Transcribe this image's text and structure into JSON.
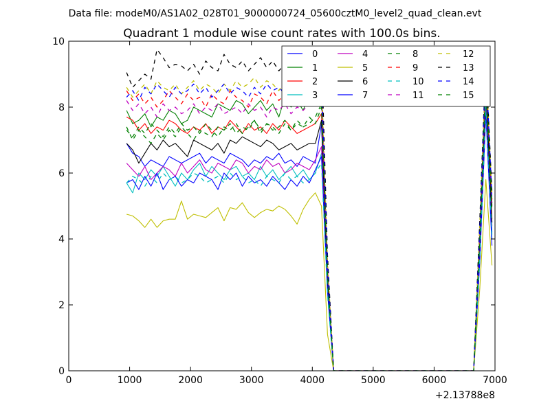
{
  "suptitle": "Data file: modeM0/AS1A02_028T01_9000000724_05600cztM0_level2_quad_clean.evt",
  "chart_data": {
    "type": "line",
    "title": "Quadrant 1 module wise count rates with 100.0s bins.",
    "xlabel": "",
    "ylabel": "",
    "xlim": [
      0,
      7000
    ],
    "ylim": [
      0,
      10
    ],
    "xticks": [
      0,
      1000,
      2000,
      3000,
      4000,
      5000,
      6000,
      7000
    ],
    "xtick_labels": [
      "0",
      "1000",
      "2000",
      "3000",
      "4000",
      "5000",
      "6000",
      "7000"
    ],
    "yticks": [
      0,
      2,
      4,
      6,
      8,
      10
    ],
    "ytick_labels": [
      "0",
      "2",
      "4",
      "6",
      "8",
      "10"
    ],
    "x_offset_label": "+2.13788e8",
    "grid": false,
    "legend_position": "top-right",
    "legend_columns": 4,
    "x": [
      950,
      1050,
      1150,
      1250,
      1350,
      1450,
      1550,
      1650,
      1750,
      1850,
      1950,
      2050,
      2150,
      2250,
      2350,
      2450,
      2550,
      2650,
      2750,
      2850,
      2950,
      3050,
      3150,
      3250,
      3350,
      3450,
      3550,
      3650,
      3750,
      3850,
      3950,
      4050,
      4150,
      4250,
      4350,
      4450,
      4550,
      4650,
      4750,
      4850,
      4950,
      5050,
      5150,
      5250,
      5350,
      5450,
      5550,
      5650,
      5750,
      5850,
      5950,
      6050,
      6150,
      6250,
      6350,
      6450,
      6550,
      6650,
      6750,
      6850,
      6950
    ],
    "series": [
      {
        "name": "0",
        "color": "#0000ff",
        "dash": "solid",
        "values": [
          6.9,
          6.6,
          6.5,
          6.2,
          6.4,
          6.3,
          6.2,
          6.5,
          6.4,
          6.3,
          6.4,
          6.5,
          6.6,
          6.3,
          6.5,
          6.4,
          6.3,
          6.6,
          6.5,
          6.4,
          6.2,
          6.4,
          6.3,
          6.5,
          6.4,
          6.6,
          6.3,
          6.4,
          6.2,
          6.5,
          6.4,
          6.3,
          7.5,
          2.5,
          0,
          0,
          0,
          0,
          0,
          0,
          0,
          0,
          0,
          0,
          0,
          0,
          0,
          0,
          0,
          0,
          0,
          0,
          0,
          0,
          0,
          0,
          0,
          0,
          3.5,
          8.5,
          4.2
        ]
      },
      {
        "name": "1",
        "color": "#008000",
        "dash": "solid",
        "values": [
          7.9,
          7.5,
          7.6,
          7.8,
          7.4,
          7.7,
          7.6,
          7.9,
          7.8,
          7.5,
          7.6,
          8.0,
          7.9,
          7.8,
          7.7,
          8.1,
          8.0,
          7.9,
          8.2,
          8.1,
          7.8,
          8.0,
          8.2,
          7.9,
          8.1,
          7.7,
          8.3,
          8.0,
          8.2,
          7.9,
          8.4,
          8.1,
          8.5,
          3.0,
          0,
          0,
          0,
          0,
          0,
          0,
          0,
          0,
          0,
          0,
          0,
          0,
          0,
          0,
          0,
          0,
          0,
          0,
          0,
          0,
          0,
          0,
          0,
          0,
          4.0,
          9.0,
          5.0
        ]
      },
      {
        "name": "2",
        "color": "#ff0000",
        "dash": "solid",
        "values": [
          7.7,
          7.6,
          7.3,
          7.5,
          7.2,
          7.4,
          7.3,
          7.6,
          7.5,
          7.3,
          7.2,
          7.4,
          7.3,
          7.5,
          7.2,
          7.4,
          7.3,
          7.6,
          7.4,
          7.2,
          7.5,
          7.3,
          7.4,
          7.2,
          7.5,
          7.3,
          7.6,
          7.4,
          7.2,
          7.3,
          7.4,
          7.5,
          7.8,
          2.8,
          0,
          0,
          0,
          0,
          0,
          0,
          0,
          0,
          0,
          0,
          0,
          0,
          0,
          0,
          0,
          0,
          0,
          0,
          0,
          0,
          0,
          0,
          0,
          0,
          3.8,
          8.8,
          4.6
        ]
      },
      {
        "name": "3",
        "color": "#00bfbf",
        "dash": "solid",
        "values": [
          5.7,
          5.4,
          6.0,
          5.8,
          6.1,
          5.9,
          6.2,
          5.9,
          5.6,
          6.0,
          5.8,
          6.1,
          6.3,
          5.9,
          6.2,
          6.0,
          5.8,
          6.1,
          6.2,
          5.9,
          6.0,
          5.8,
          6.2,
          5.9,
          6.1,
          5.8,
          6.0,
          6.2,
          5.9,
          6.1,
          5.8,
          6.0,
          6.6,
          2.4,
          0,
          0,
          0,
          0,
          0,
          0,
          0,
          0,
          0,
          0,
          0,
          0,
          0,
          0,
          0,
          0,
          0,
          0,
          0,
          0,
          0,
          0,
          0,
          0,
          3.4,
          8.2,
          4.0
        ]
      },
      {
        "name": "4",
        "color": "#bf00bf",
        "dash": "solid",
        "values": [
          6.3,
          6.1,
          5.9,
          6.2,
          5.8,
          6.0,
          6.2,
          6.1,
          5.9,
          6.3,
          6.0,
          6.2,
          6.4,
          6.1,
          6.0,
          6.3,
          6.2,
          6.1,
          6.4,
          6.3,
          6.0,
          6.2,
          6.1,
          6.4,
          6.2,
          6.3,
          6.0,
          6.1,
          6.3,
          6.2,
          6.1,
          6.4,
          6.8,
          2.6,
          0,
          0,
          0,
          0,
          0,
          0,
          0,
          0,
          0,
          0,
          0,
          0,
          0,
          0,
          0,
          0,
          0,
          0,
          0,
          0,
          0,
          0,
          0,
          0,
          3.6,
          8.4,
          4.4
        ]
      },
      {
        "name": "5",
        "color": "#bfbf00",
        "dash": "solid",
        "values": [
          4.75,
          4.7,
          4.55,
          4.35,
          4.6,
          4.35,
          4.55,
          4.6,
          4.6,
          5.15,
          4.6,
          4.75,
          4.7,
          4.65,
          4.8,
          4.95,
          4.55,
          4.95,
          4.9,
          5.1,
          4.8,
          4.65,
          4.8,
          4.9,
          4.85,
          5.0,
          4.9,
          4.7,
          4.45,
          4.9,
          5.2,
          5.4,
          5.0,
          1.1,
          0,
          0,
          0,
          0,
          0,
          0,
          0,
          0,
          0,
          0,
          0,
          0,
          0,
          0,
          0,
          0,
          0,
          0,
          0,
          0,
          0,
          0,
          0,
          0,
          2.5,
          5.8,
          3.2
        ]
      },
      {
        "name": "6",
        "color": "#000000",
        "dash": "solid",
        "values": [
          6.9,
          6.7,
          6.3,
          6.6,
          6.9,
          6.7,
          7.0,
          6.8,
          6.9,
          6.7,
          6.5,
          7.0,
          6.9,
          6.8,
          6.7,
          6.9,
          6.6,
          7.0,
          6.9,
          7.1,
          7.0,
          6.9,
          6.8,
          7.0,
          6.9,
          6.7,
          6.8,
          6.9,
          6.7,
          6.8,
          6.9,
          6.9,
          7.6,
          2.7,
          0,
          0,
          0,
          0,
          0,
          0,
          0,
          0,
          0,
          0,
          0,
          0,
          0,
          0,
          0,
          0,
          0,
          0,
          0,
          0,
          0,
          0,
          0,
          0,
          3.9,
          8.6,
          4.5
        ]
      },
      {
        "name": "7",
        "color": "#0000ff",
        "dash": "solid",
        "values": [
          5.7,
          5.8,
          5.5,
          5.9,
          5.6,
          6.0,
          5.5,
          5.8,
          5.9,
          5.6,
          5.8,
          5.7,
          6.0,
          5.9,
          5.8,
          5.5,
          6.0,
          5.8,
          6.0,
          5.6,
          5.9,
          5.7,
          5.8,
          5.6,
          5.9,
          5.7,
          5.5,
          5.8,
          5.6,
          5.9,
          5.7,
          6.1,
          6.5,
          2.4,
          0,
          0,
          0,
          0,
          0,
          0,
          0,
          0,
          0,
          0,
          0,
          0,
          0,
          0,
          0,
          0,
          0,
          0,
          0,
          0,
          0,
          0,
          0,
          0,
          3.3,
          7.8,
          3.8
        ]
      },
      {
        "name": "8",
        "color": "#008000",
        "dash": "dashed",
        "values": [
          7.4,
          7.0,
          7.3,
          7.1,
          6.9,
          7.2,
          7.0,
          7.3,
          7.1,
          7.4,
          7.2,
          7.0,
          7.3,
          7.2,
          7.1,
          7.4,
          7.3,
          7.5,
          7.2,
          7.4,
          7.3,
          7.6,
          7.2,
          7.5,
          7.3,
          7.4,
          7.6,
          7.3,
          7.5,
          7.4,
          7.7,
          7.5,
          8.0,
          2.9,
          0,
          0,
          0,
          0,
          0,
          0,
          0,
          0,
          0,
          0,
          0,
          0,
          0,
          0,
          0,
          0,
          0,
          0,
          0,
          0,
          0,
          0,
          0,
          0,
          4.1,
          8.9,
          5.1
        ]
      },
      {
        "name": "9",
        "color": "#ff0000",
        "dash": "dashed",
        "values": [
          8.5,
          8.2,
          8.4,
          8.1,
          8.3,
          8.0,
          8.2,
          8.5,
          8.3,
          8.1,
          8.4,
          8.2,
          8.3,
          8.0,
          8.4,
          8.2,
          8.1,
          8.5,
          8.3,
          8.2,
          8.0,
          8.4,
          8.3,
          8.1,
          8.5,
          8.2,
          8.4,
          8.1,
          8.3,
          8.5,
          8.2,
          8.6,
          8.8,
          3.2,
          0,
          0,
          0,
          0,
          0,
          0,
          0,
          0,
          0,
          0,
          0,
          0,
          0,
          0,
          0,
          0,
          0,
          0,
          0,
          0,
          0,
          0,
          0,
          0,
          4.4,
          9.2,
          5.2
        ]
      },
      {
        "name": "10",
        "color": "#00bfbf",
        "dash": "dashed",
        "values": [
          5.7,
          5.9,
          5.8,
          5.6,
          5.9,
          5.7,
          6.0,
          5.8,
          5.9,
          5.7,
          5.8,
          6.0,
          5.9,
          5.7,
          5.8,
          5.9,
          5.7,
          6.0,
          5.8,
          5.9,
          5.7,
          5.8,
          5.6,
          5.9,
          5.8,
          5.7,
          6.0,
          5.8,
          5.9,
          5.7,
          5.8,
          6.0,
          6.3,
          2.3,
          0,
          0,
          0,
          0,
          0,
          0,
          0,
          0,
          0,
          0,
          0,
          0,
          0,
          0,
          0,
          0,
          0,
          0,
          0,
          0,
          0,
          0,
          0,
          0,
          3.4,
          8.0,
          4.1
        ]
      },
      {
        "name": "11",
        "color": "#bf00bf",
        "dash": "dashed",
        "values": [
          8.2,
          7.9,
          8.1,
          7.8,
          8.0,
          7.7,
          8.1,
          7.9,
          8.0,
          7.8,
          7.9,
          8.1,
          7.8,
          8.0,
          7.9,
          8.1,
          7.8,
          7.9,
          8.0,
          7.8,
          8.1,
          7.9,
          8.0,
          7.7,
          8.0,
          7.9,
          8.1,
          7.8,
          8.0,
          7.9,
          8.1,
          8.2,
          8.4,
          3.1,
          0,
          0,
          0,
          0,
          0,
          0,
          0,
          0,
          0,
          0,
          0,
          0,
          0,
          0,
          0,
          0,
          0,
          0,
          0,
          0,
          0,
          0,
          0,
          0,
          4.2,
          9.1,
          5.0
        ]
      },
      {
        "name": "12",
        "color": "#bfbf00",
        "dash": "dashed",
        "values": [
          8.6,
          8.3,
          8.5,
          8.7,
          8.4,
          8.8,
          8.6,
          8.5,
          8.7,
          8.4,
          8.6,
          8.8,
          8.5,
          8.7,
          8.6,
          8.4,
          8.7,
          8.5,
          8.8,
          8.6,
          8.7,
          8.9,
          8.6,
          8.8,
          8.7,
          8.5,
          8.8,
          8.6,
          8.7,
          8.9,
          8.8,
          8.7,
          9.0,
          3.3,
          0,
          0,
          0,
          0,
          0,
          0,
          0,
          0,
          0,
          0,
          0,
          0,
          0,
          0,
          0,
          0,
          0,
          0,
          0,
          0,
          0,
          0,
          0,
          0,
          4.5,
          9.3,
          5.3
        ]
      },
      {
        "name": "13",
        "color": "#000000",
        "dash": "dashed",
        "values": [
          9.05,
          8.6,
          8.8,
          9.0,
          8.85,
          9.75,
          9.5,
          9.2,
          9.3,
          9.25,
          9.1,
          9.3,
          9.0,
          9.4,
          9.2,
          9.1,
          9.6,
          9.3,
          9.2,
          9.4,
          9.1,
          9.3,
          9.5,
          9.2,
          9.4,
          9.1,
          9.3,
          9.5,
          9.2,
          9.4,
          9.3,
          9.5,
          9.8,
          3.5,
          0,
          0,
          0,
          0,
          0,
          0,
          0,
          0,
          0,
          0,
          0,
          0,
          0,
          0,
          0,
          0,
          0,
          0,
          0,
          0,
          0,
          0,
          0,
          0,
          4.6,
          9.5,
          5.4
        ]
      },
      {
        "name": "14",
        "color": "#0000ff",
        "dash": "dashed",
        "values": [
          8.3,
          8.5,
          8.2,
          8.6,
          8.4,
          8.7,
          8.5,
          8.3,
          8.6,
          8.4,
          8.5,
          8.7,
          8.4,
          8.6,
          8.3,
          8.5,
          8.7,
          8.4,
          8.6,
          8.5,
          8.3,
          8.6,
          8.4,
          8.7,
          8.5,
          8.6,
          8.4,
          8.5,
          8.7,
          8.4,
          8.6,
          8.5,
          8.9,
          3.2,
          0,
          0,
          0,
          0,
          0,
          0,
          0,
          0,
          0,
          0,
          0,
          0,
          0,
          0,
          0,
          0,
          0,
          0,
          0,
          0,
          0,
          0,
          0,
          0,
          4.3,
          9.4,
          5.2
        ]
      },
      {
        "name": "15",
        "color": "#008000",
        "dash": "dashed",
        "values": [
          7.3,
          7.1,
          7.4,
          7.2,
          7.5,
          7.3,
          7.1,
          7.4,
          7.2,
          7.5,
          7.3,
          7.4,
          7.2,
          7.5,
          7.3,
          7.1,
          7.4,
          7.3,
          7.5,
          7.2,
          7.4,
          7.6,
          7.3,
          7.5,
          7.4,
          7.2,
          7.5,
          7.3,
          7.6,
          7.4,
          7.5,
          7.7,
          8.1,
          2.9,
          0,
          0,
          0,
          0,
          0,
          0,
          0,
          0,
          0,
          0,
          0,
          0,
          0,
          0,
          0,
          0,
          0,
          0,
          0,
          0,
          0,
          0,
          0,
          0,
          4.0,
          8.9,
          4.9
        ]
      }
    ]
  }
}
